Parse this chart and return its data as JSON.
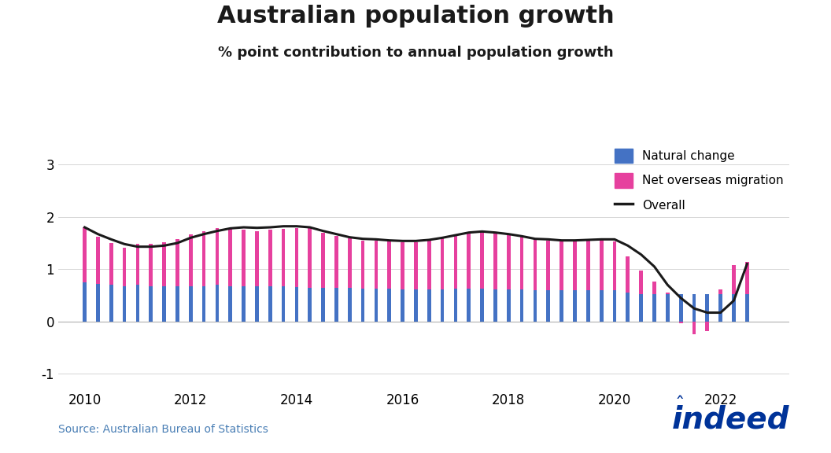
{
  "title": "Australian population growth",
  "subtitle": "% point contribution to annual population growth",
  "source": "Source: Australian Bureau of Statistics",
  "xlim": [
    2009.5,
    2023.3
  ],
  "ylim": [
    -1.3,
    3.2
  ],
  "yticks": [
    -1,
    0,
    1,
    2,
    3
  ],
  "xticks": [
    2010,
    2012,
    2014,
    2016,
    2018,
    2020,
    2022
  ],
  "bar_color_natural": "#4472c4",
  "bar_color_migration": "#e6409e",
  "line_color": "#1a1a1a",
  "x_values": [
    2010.0,
    2010.25,
    2010.5,
    2010.75,
    2011.0,
    2011.25,
    2011.5,
    2011.75,
    2012.0,
    2012.25,
    2012.5,
    2012.75,
    2013.0,
    2013.25,
    2013.5,
    2013.75,
    2014.0,
    2014.25,
    2014.5,
    2014.75,
    2015.0,
    2015.25,
    2015.5,
    2015.75,
    2016.0,
    2016.25,
    2016.5,
    2016.75,
    2017.0,
    2017.25,
    2017.5,
    2017.75,
    2018.0,
    2018.25,
    2018.5,
    2018.75,
    2019.0,
    2019.25,
    2019.5,
    2019.75,
    2020.0,
    2020.25,
    2020.5,
    2020.75,
    2021.0,
    2021.25,
    2021.5,
    2021.75,
    2022.0,
    2022.25,
    2022.5
  ],
  "natural_change": [
    0.75,
    0.72,
    0.7,
    0.68,
    0.7,
    0.68,
    0.67,
    0.67,
    0.68,
    0.68,
    0.7,
    0.68,
    0.68,
    0.67,
    0.67,
    0.67,
    0.66,
    0.65,
    0.65,
    0.64,
    0.64,
    0.63,
    0.63,
    0.63,
    0.62,
    0.62,
    0.62,
    0.62,
    0.63,
    0.63,
    0.63,
    0.62,
    0.62,
    0.61,
    0.6,
    0.6,
    0.6,
    0.6,
    0.6,
    0.6,
    0.6,
    0.55,
    0.53,
    0.52,
    0.52,
    0.52,
    0.53,
    0.53,
    0.53,
    0.53,
    0.52
  ],
  "net_migration": [
    1.05,
    0.9,
    0.8,
    0.73,
    0.78,
    0.8,
    0.85,
    0.9,
    0.98,
    1.05,
    1.08,
    1.1,
    1.08,
    1.05,
    1.08,
    1.1,
    1.13,
    1.13,
    1.05,
    1.0,
    0.95,
    0.92,
    0.92,
    0.9,
    0.9,
    0.9,
    0.93,
    0.98,
    1.03,
    1.07,
    1.08,
    1.07,
    1.05,
    1.02,
    0.98,
    0.95,
    0.95,
    0.95,
    0.95,
    0.96,
    0.93,
    0.7,
    0.45,
    0.25,
    0.03,
    -0.04,
    -0.25,
    -0.18,
    0.08,
    0.55,
    0.62
  ],
  "overall_line": [
    1.8,
    1.67,
    1.57,
    1.48,
    1.43,
    1.43,
    1.45,
    1.5,
    1.6,
    1.67,
    1.73,
    1.78,
    1.8,
    1.79,
    1.8,
    1.82,
    1.82,
    1.8,
    1.73,
    1.67,
    1.61,
    1.58,
    1.57,
    1.55,
    1.54,
    1.54,
    1.56,
    1.6,
    1.65,
    1.7,
    1.72,
    1.7,
    1.67,
    1.63,
    1.58,
    1.57,
    1.55,
    1.55,
    1.56,
    1.57,
    1.57,
    1.45,
    1.28,
    1.05,
    0.7,
    0.45,
    0.25,
    0.17,
    0.17,
    0.4,
    1.1
  ],
  "bar_width": 0.07,
  "legend_labels": [
    "Natural change",
    "Net overseas migration",
    "Overall"
  ],
  "title_fontsize": 22,
  "subtitle_fontsize": 13,
  "tick_fontsize": 12,
  "source_fontsize": 10,
  "background_color": "#ffffff",
  "grid_color": "#d0d0d0",
  "zero_line_color": "#b0b0b0",
  "indeed_color": "#003399",
  "indeed_fontsize": 28
}
